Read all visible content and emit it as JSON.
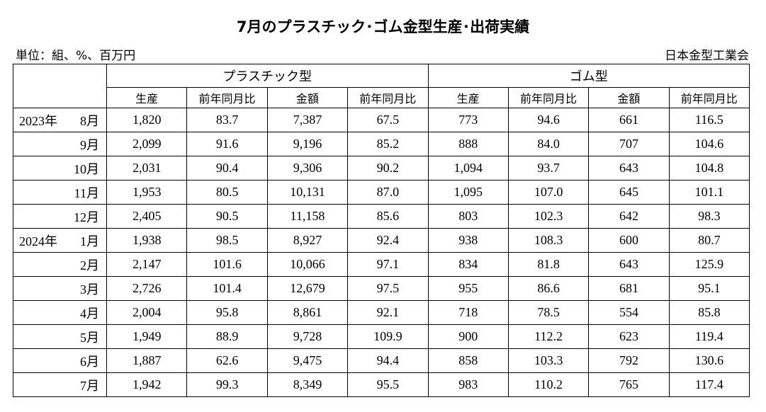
{
  "header": {
    "title": "7月のプラスチック･ゴム金型生産･出荷実績",
    "unit": "単位：組、%、百万円",
    "source": "日本金型工業会"
  },
  "table": {
    "groups": [
      "プラスチック型",
      "ゴム型"
    ],
    "subheaders": [
      "生産",
      "前年同月比",
      "金額",
      "前年同月比",
      "生産",
      "前年同月比",
      "金額",
      "前年同月比"
    ],
    "rows": [
      {
        "year": "2023年",
        "month": "8月",
        "cells": [
          "1,820",
          "83.7",
          "7,387",
          "67.5",
          "773",
          "94.6",
          "661",
          "116.5"
        ]
      },
      {
        "month": "9月",
        "cells": [
          "2,099",
          "91.6",
          "9,196",
          "85.2",
          "888",
          "84.0",
          "707",
          "104.6"
        ]
      },
      {
        "month": "10月",
        "cells": [
          "2,031",
          "90.4",
          "9,306",
          "90.2",
          "1,094",
          "93.7",
          "643",
          "104.8"
        ]
      },
      {
        "month": "11月",
        "cells": [
          "1,953",
          "80.5",
          "10,131",
          "87.0",
          "1,095",
          "107.0",
          "645",
          "101.1"
        ]
      },
      {
        "month": "12月",
        "cells": [
          "2,405",
          "90.5",
          "11,158",
          "85.6",
          "803",
          "102.3",
          "642",
          "98.3"
        ]
      },
      {
        "year": "2024年",
        "month": "1月",
        "cells": [
          "1,938",
          "98.5",
          "8,927",
          "92.4",
          "938",
          "108.3",
          "600",
          "80.7"
        ]
      },
      {
        "month": "2月",
        "cells": [
          "2,147",
          "101.6",
          "10,066",
          "97.1",
          "834",
          "81.8",
          "643",
          "125.9"
        ]
      },
      {
        "month": "3月",
        "cells": [
          "2,726",
          "101.4",
          "12,679",
          "97.5",
          "955",
          "86.6",
          "681",
          "95.1"
        ]
      },
      {
        "month": "4月",
        "cells": [
          "2,004",
          "95.8",
          "8,861",
          "92.1",
          "718",
          "78.5",
          "554",
          "85.8"
        ]
      },
      {
        "month": "5月",
        "cells": [
          "1,949",
          "88.9",
          "9,728",
          "109.9",
          "900",
          "112.2",
          "623",
          "119.4"
        ]
      },
      {
        "month": "6月",
        "cells": [
          "1,887",
          "62.6",
          "9,475",
          "94.4",
          "858",
          "103.3",
          "792",
          "130.6"
        ]
      },
      {
        "month": "7月",
        "cells": [
          "1,942",
          "99.3",
          "8,349",
          "95.5",
          "983",
          "110.2",
          "765",
          "117.4"
        ]
      }
    ]
  }
}
